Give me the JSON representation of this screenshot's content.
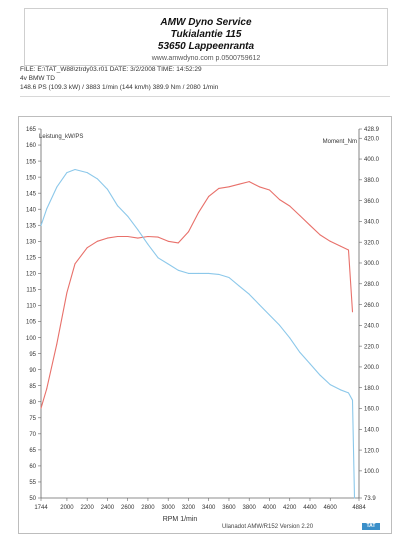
{
  "header": {
    "title": "AMW Dyno Service",
    "street": "Tukialantie 115",
    "city": "53650 Lappeenranta",
    "web": "www.amwdyno.com p.0500759612"
  },
  "meta": {
    "file_line": "FILE: E:\\TAT_W88\\ztrdy03.r01  DATE: 3/2/2008  TIME: 14:52:29",
    "car_line": "4v BMW TD",
    "result_line": "148.6 PS  (109.3 kW) / 3883 1/min  (144 km/h)     389.9 Nm / 2080 1/min"
  },
  "footer": {
    "note": "Ulanadot AMW/R152  Version 2.20",
    "logo": "TAT"
  },
  "chart_data": {
    "type": "line",
    "xlabel": "RPM  1/min",
    "ylabel_left": "Leistung_kW/PS",
    "ylabel_right": "Moment_Nm",
    "xlim": [
      1744,
      4884
    ],
    "ylim_left": [
      50,
      165
    ],
    "ylim_right": [
      73.9,
      428.9
    ],
    "x_ticks": [
      "1744",
      "2000",
      "2200",
      "2400",
      "2600",
      "2800",
      "3000",
      "3200",
      "3400",
      "3600",
      "3800",
      "4000",
      "4200",
      "4400",
      "4600",
      "4884"
    ],
    "y_ticks_left": [
      "50",
      "55",
      "60",
      "65",
      "70",
      "75",
      "80",
      "85",
      "90",
      "95",
      "100",
      "105",
      "110",
      "115",
      "120",
      "125",
      "130",
      "135",
      "140",
      "145",
      "150",
      "155",
      "160",
      "165"
    ],
    "y_ticks_right": [
      "73.9",
      "100.0",
      "120.0",
      "140.0",
      "160.0",
      "180.0",
      "200.0",
      "220.0",
      "240.0",
      "260.0",
      "280.0",
      "300.0",
      "320.0",
      "340.0",
      "360.0",
      "380.0",
      "400.0",
      "420.0",
      "428.9"
    ],
    "grid": false,
    "series": [
      {
        "name": "Leistung",
        "axis": "left",
        "color": "#e8706a",
        "x": [
          1744,
          1800,
          1900,
          2000,
          2080,
          2200,
          2300,
          2400,
          2500,
          2600,
          2700,
          2800,
          2900,
          3000,
          3100,
          3200,
          3300,
          3400,
          3500,
          3600,
          3700,
          3800,
          3900,
          4000,
          4100,
          4200,
          4300,
          4400,
          4500,
          4600,
          4700,
          4780,
          4820
        ],
        "values": [
          78,
          84,
          98,
          114,
          123,
          128,
          130,
          131,
          131.5,
          131.5,
          131,
          131.5,
          131.3,
          130,
          129.5,
          133,
          139,
          144,
          146.5,
          147,
          147.8,
          148.6,
          147,
          146,
          143,
          141,
          138,
          135,
          132,
          130,
          128.5,
          127.3,
          108
        ]
      },
      {
        "name": "Moment",
        "axis": "right",
        "color": "#8cc8ea",
        "x": [
          1744,
          1800,
          1900,
          2000,
          2080,
          2200,
          2300,
          2400,
          2500,
          2600,
          2700,
          2800,
          2900,
          3000,
          3100,
          3200,
          3300,
          3400,
          3500,
          3600,
          3700,
          3800,
          3900,
          4000,
          4100,
          4200,
          4300,
          4400,
          4500,
          4600,
          4700,
          4780,
          4820,
          4840
        ],
        "values": [
          336,
          352,
          373,
          387,
          389.9,
          387,
          381,
          371,
          355,
          345,
          332,
          318,
          305,
          299,
          293,
          290,
          290,
          290,
          289,
          286,
          278,
          270,
          260,
          250,
          240,
          228,
          214,
          203,
          192,
          183,
          178,
          175,
          168,
          73.9
        ]
      }
    ]
  }
}
